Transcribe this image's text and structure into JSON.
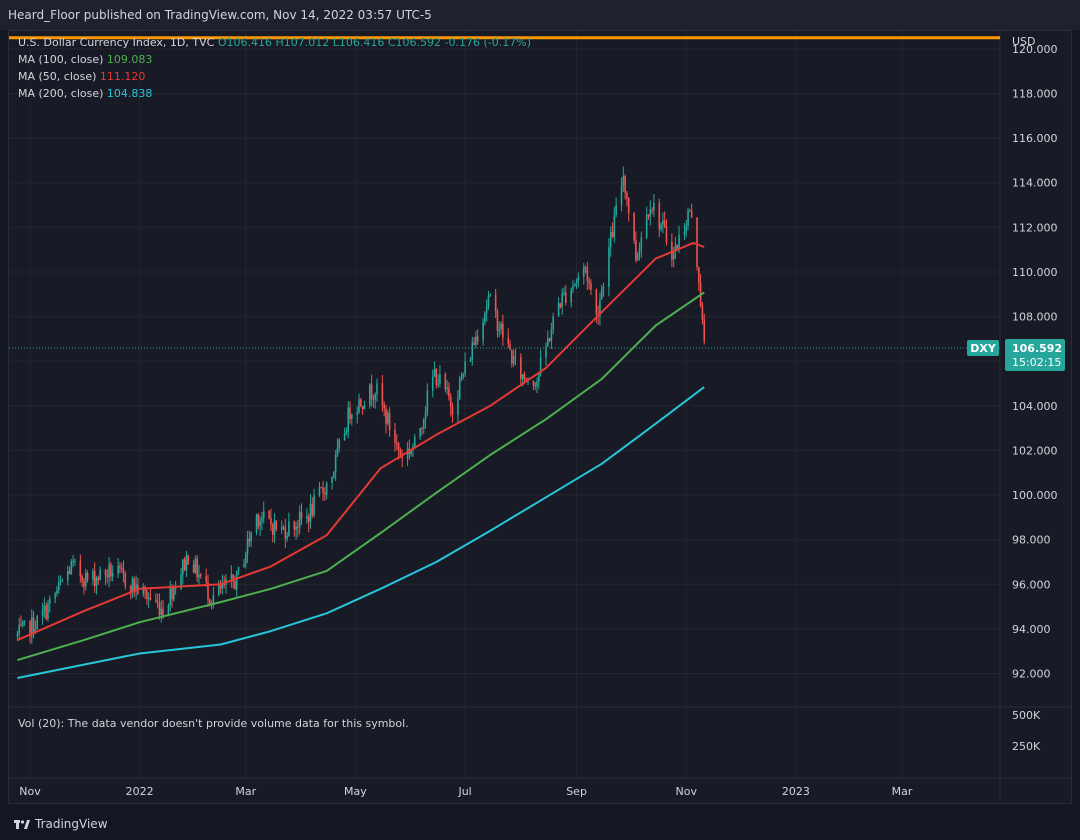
{
  "header": {
    "published": "Heard_Floor published on TradingView.com, Nov 14, 2022 03:57 UTC-5"
  },
  "legend": {
    "symbol_line": "U.S. Dollar Currency Index, 1D, TVC",
    "ohlc": {
      "o": "O106.416",
      "h": "H107.012",
      "l": "L106.416",
      "c": "C106.592",
      "chg": "-0.176 (-0.17%)"
    },
    "ma100": {
      "label": "MA (100, close)",
      "value": "109.083",
      "color": "#4caf50"
    },
    "ma50": {
      "label": "MA (50, close)",
      "value": "111.120",
      "color": "#e53935"
    },
    "ma200": {
      "label": "MA (200, close)",
      "value": "104.838",
      "color": "#26c6da"
    }
  },
  "volume": {
    "note": "Vol (20): The data vendor doesn't provide volume data for this symbol.",
    "ticks": [
      "500K",
      "250K"
    ]
  },
  "footer": {
    "brand": "TradingView"
  },
  "chart_data": {
    "type": "candlestick",
    "currency": "USD",
    "symbol_tag": "DXY",
    "last_price": "106.592",
    "countdown": "15:02:15",
    "y_range": [
      90.5,
      120.8
    ],
    "y_ticks": [
      "120.000",
      "118.000",
      "116.000",
      "114.000",
      "112.000",
      "110.000",
      "108.000",
      "106.000",
      "104.000",
      "102.000",
      "100.000",
      "98.000",
      "96.000",
      "94.000",
      "92.000"
    ],
    "x_ticks": [
      {
        "label": "Nov",
        "date": "2021-11-01"
      },
      {
        "label": "2022",
        "date": "2022-01-01"
      },
      {
        "label": "Mar",
        "date": "2022-03-01"
      },
      {
        "label": "May",
        "date": "2022-05-01"
      },
      {
        "label": "Jul",
        "date": "2022-07-01"
      },
      {
        "label": "Sep",
        "date": "2022-09-01"
      },
      {
        "label": "Nov",
        "date": "2022-11-01"
      },
      {
        "label": "2023",
        "date": "2023-01-01"
      },
      {
        "label": "Mar",
        "date": "2023-03-01"
      }
    ],
    "horizontal_line": {
      "value": 120.5,
      "color": "#ff9800"
    },
    "price_points": [
      {
        "date": "2021-10-25",
        "close": 93.7
      },
      {
        "date": "2021-11-05",
        "close": 94.3
      },
      {
        "date": "2021-11-12",
        "close": 95.1
      },
      {
        "date": "2021-11-24",
        "close": 96.8
      },
      {
        "date": "2021-12-03",
        "close": 96.2
      },
      {
        "date": "2021-12-17",
        "close": 96.6
      },
      {
        "date": "2021-12-31",
        "close": 95.8
      },
      {
        "date": "2022-01-14",
        "close": 94.9
      },
      {
        "date": "2022-01-28",
        "close": 97.3
      },
      {
        "date": "2022-02-10",
        "close": 95.4
      },
      {
        "date": "2022-02-24",
        "close": 96.2
      },
      {
        "date": "2022-03-07",
        "close": 99.1
      },
      {
        "date": "2022-03-21",
        "close": 98.4
      },
      {
        "date": "2022-04-04",
        "close": 99.0
      },
      {
        "date": "2022-04-18",
        "close": 100.9
      },
      {
        "date": "2022-04-28",
        "close": 103.8
      },
      {
        "date": "2022-05-12",
        "close": 104.8
      },
      {
        "date": "2022-05-26",
        "close": 101.8
      },
      {
        "date": "2022-06-03",
        "close": 102.2
      },
      {
        "date": "2022-06-14",
        "close": 105.5
      },
      {
        "date": "2022-06-24",
        "close": 104.0
      },
      {
        "date": "2022-07-14",
        "close": 108.8
      },
      {
        "date": "2022-07-29",
        "close": 105.8
      },
      {
        "date": "2022-08-02",
        "close": 105.3
      },
      {
        "date": "2022-08-10",
        "close": 105.2
      },
      {
        "date": "2022-08-22",
        "close": 108.6
      },
      {
        "date": "2022-09-06",
        "close": 110.2
      },
      {
        "date": "2022-09-12",
        "close": 108.0
      },
      {
        "date": "2022-09-27",
        "close": 114.4
      },
      {
        "date": "2022-10-04",
        "close": 110.7
      },
      {
        "date": "2022-10-12",
        "close": 113.2
      },
      {
        "date": "2022-10-25",
        "close": 110.8
      },
      {
        "date": "2022-11-03",
        "close": 112.8
      },
      {
        "date": "2022-11-08",
        "close": 109.8
      },
      {
        "date": "2022-11-11",
        "close": 106.6
      }
    ],
    "series": [
      {
        "name": "MA (50, close)",
        "color": "#e53935",
        "points": [
          {
            "date": "2021-10-25",
            "value": 93.5
          },
          {
            "date": "2021-12-01",
            "value": 94.8
          },
          {
            "date": "2022-01-01",
            "value": 95.8
          },
          {
            "date": "2022-02-15",
            "value": 96.0
          },
          {
            "date": "2022-03-15",
            "value": 96.8
          },
          {
            "date": "2022-04-15",
            "value": 98.2
          },
          {
            "date": "2022-05-15",
            "value": 101.2
          },
          {
            "date": "2022-06-15",
            "value": 102.7
          },
          {
            "date": "2022-07-15",
            "value": 104.0
          },
          {
            "date": "2022-08-15",
            "value": 105.7
          },
          {
            "date": "2022-09-15",
            "value": 108.2
          },
          {
            "date": "2022-10-15",
            "value": 110.6
          },
          {
            "date": "2022-11-05",
            "value": 111.3
          },
          {
            "date": "2022-11-11",
            "value": 111.12
          }
        ]
      },
      {
        "name": "MA (100, close)",
        "color": "#4caf50",
        "points": [
          {
            "date": "2021-10-25",
            "value": 92.6
          },
          {
            "date": "2021-12-01",
            "value": 93.5
          },
          {
            "date": "2022-01-01",
            "value": 94.3
          },
          {
            "date": "2022-02-15",
            "value": 95.2
          },
          {
            "date": "2022-03-15",
            "value": 95.8
          },
          {
            "date": "2022-04-15",
            "value": 96.6
          },
          {
            "date": "2022-05-15",
            "value": 98.3
          },
          {
            "date": "2022-06-15",
            "value": 100.1
          },
          {
            "date": "2022-07-15",
            "value": 101.8
          },
          {
            "date": "2022-08-15",
            "value": 103.4
          },
          {
            "date": "2022-09-15",
            "value": 105.2
          },
          {
            "date": "2022-10-15",
            "value": 107.6
          },
          {
            "date": "2022-11-11",
            "value": 109.083
          }
        ]
      },
      {
        "name": "MA (200, close)",
        "color": "#26c6da",
        "points": [
          {
            "date": "2021-10-25",
            "value": 91.8
          },
          {
            "date": "2021-12-01",
            "value": 92.4
          },
          {
            "date": "2022-01-01",
            "value": 92.9
          },
          {
            "date": "2022-02-15",
            "value": 93.3
          },
          {
            "date": "2022-03-15",
            "value": 93.9
          },
          {
            "date": "2022-04-15",
            "value": 94.7
          },
          {
            "date": "2022-05-15",
            "value": 95.8
          },
          {
            "date": "2022-06-15",
            "value": 97.0
          },
          {
            "date": "2022-07-15",
            "value": 98.4
          },
          {
            "date": "2022-08-15",
            "value": 99.9
          },
          {
            "date": "2022-09-15",
            "value": 101.4
          },
          {
            "date": "2022-10-15",
            "value": 103.2
          },
          {
            "date": "2022-11-11",
            "value": 104.838
          }
        ]
      }
    ]
  }
}
